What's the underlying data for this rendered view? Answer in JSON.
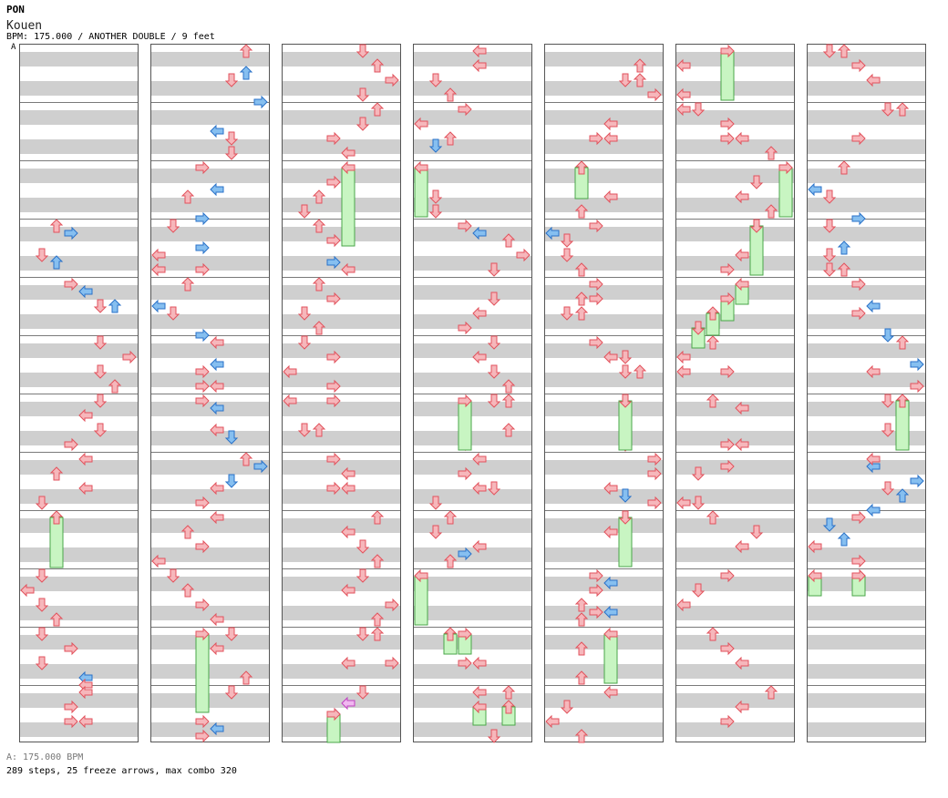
{
  "song": {
    "artist": "PON",
    "title": "Kouen",
    "info": "BPM: 175.000 / ANOTHER DOUBLE / 9 feet"
  },
  "bpm_marker": "A",
  "footer": {
    "bpm_note": "A: 175.000 BPM",
    "summary": "289 steps, 25 freeze arrows, max combo 320"
  },
  "colors": {
    "step": "#f6b7bb",
    "step_stroke": "#e2525c",
    "blue": "#86bff0",
    "blue_stroke": "#2a72c8",
    "freeze": "#c8f5c2",
    "freeze_stroke": "#4aa64a",
    "pink": "#f0b8f0",
    "pink_stroke": "#c040c0"
  },
  "chart_data": {
    "type": "step-chart",
    "mode": "ANOTHER DOUBLE",
    "bpm": 175.0,
    "panels": 8,
    "steps": 289,
    "freeze_arrows": 25,
    "max_combo": 320
  }
}
